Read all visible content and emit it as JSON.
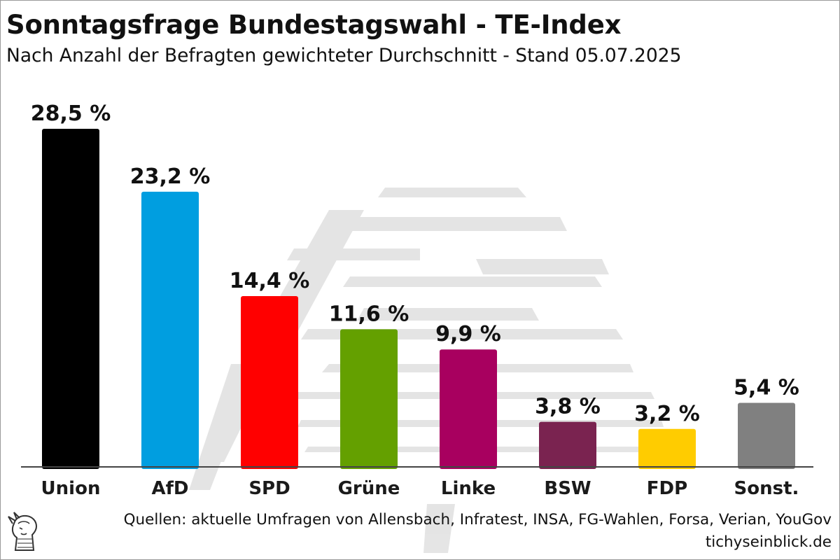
{
  "header": {
    "title": "Sonntagsfrage Bundestagswahl - TE-Index",
    "subtitle": "Nach Anzahl der Befragten gewichteter Durchschnitt - Stand 05.07.2025"
  },
  "footer": {
    "sources": "Quellen: aktuelle Umfragen von Allensbach, Infratest, INSA, FG-Wahlen, Forsa, Verian, YouGov",
    "site": "tichyseinblick.de"
  },
  "chart_data": {
    "type": "bar",
    "title": "Sonntagsfrage Bundestagswahl - TE-Index",
    "subtitle": "Nach Anzahl der Befragten gewichteter Durchschnitt - Stand 05.07.2025",
    "categories": [
      "Union",
      "AfD",
      "SPD",
      "Grüne",
      "Linke",
      "BSW",
      "FDP",
      "Sonst."
    ],
    "values": [
      28.5,
      23.2,
      14.4,
      11.6,
      9.9,
      3.8,
      3.2,
      5.4
    ],
    "value_labels": [
      "28,5 %",
      "23,2 %",
      "14,4 %",
      "11,6 %",
      "9,9 %",
      "3,8 %",
      "3,2 %",
      "5,4 %"
    ],
    "colors": [
      "#000000",
      "#009ee0",
      "#ff0000",
      "#64a000",
      "#a8005f",
      "#7a2350",
      "#ffcc00",
      "#808080"
    ],
    "xlabel": "",
    "ylabel": "",
    "ylim": [
      0,
      30
    ],
    "grid": false,
    "legend": "none"
  }
}
